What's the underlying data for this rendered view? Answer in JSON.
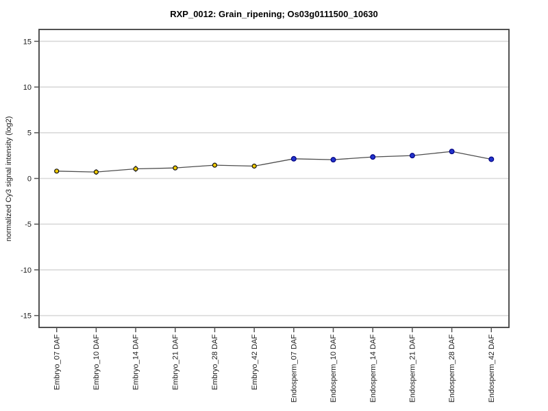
{
  "chart_data": {
    "type": "line",
    "title": "RXP_0012: Grain_ripening; Os03g0111500_10630",
    "xlabel": "",
    "ylabel": "normalized Cy3 signal intensity (log2)",
    "ylim": [
      -16.3,
      16.3
    ],
    "yticks": [
      15,
      10,
      5,
      0,
      -5,
      -10,
      -15
    ],
    "grid": true,
    "legend": "none",
    "categories": [
      "Embryo_07 DAF",
      "Embryo_10 DAF",
      "Embryo_14 DAF",
      "Embryo_21 DAF",
      "Embryo_28 DAF",
      "Embryo_42 DAF",
      "Endosperm_07 DAF",
      "Endosperm_10 DAF",
      "Endosperm_14 DAF",
      "Endosperm_21 DAF",
      "Endosperm_28 DAF",
      "Endosperm_42 DAF"
    ],
    "values": [
      0.8,
      0.7,
      1.05,
      1.15,
      1.45,
      1.35,
      2.15,
      2.05,
      2.35,
      2.5,
      2.95,
      2.1
    ],
    "errors": [
      0.2,
      0.3,
      0.35,
      0.25,
      0.1,
      0.1,
      0.15,
      0.1,
      0.1,
      0.1,
      0.15,
      0.1
    ],
    "point_groups": [
      {
        "name": "Embryo",
        "count": 6,
        "fill": "#EFC900",
        "stroke": "#111111",
        "radius": 3.0
      },
      {
        "name": "Endosperm",
        "count": 6,
        "fill": "#2233CC",
        "stroke": "#000080",
        "radius": 3.4
      }
    ],
    "colors": {
      "grid": "#d9d9d9",
      "box": "#3f3f3f",
      "line": "#4d4d4d",
      "tick": "#555555",
      "error_bar": "#333333",
      "background": "#ffffff"
    }
  }
}
